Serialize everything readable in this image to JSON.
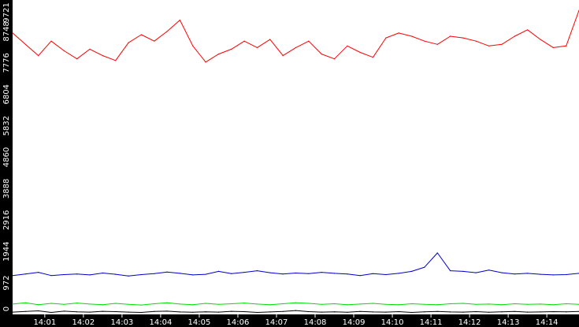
{
  "chart_data": {
    "type": "line",
    "title": "",
    "xlabel": "",
    "ylabel": "",
    "ylim": [
      0,
      9721
    ],
    "xlim": [
      "14:00:10",
      "14:14:50"
    ],
    "grid": false,
    "legend": "none",
    "y_ticks": [
      0,
      972,
      1944,
      2916,
      3888,
      4860,
      5832,
      6804,
      7776,
      8748,
      9721
    ],
    "x_ticks": [
      "14:01",
      "14:02",
      "14:03",
      "14:04",
      "14:05",
      "14:06",
      "14:07",
      "14:08",
      "14:09",
      "14:10",
      "14:11",
      "14:12",
      "14:13",
      "14:14"
    ],
    "x_tick_times": [
      "14:01:00",
      "14:02:00",
      "14:03:00",
      "14:04:00",
      "14:05:00",
      "14:06:00",
      "14:07:00",
      "14:08:00",
      "14:09:00",
      "14:10:00",
      "14:11:00",
      "14:12:00",
      "14:13:00",
      "14:14:00"
    ],
    "x": [
      "14:00:10",
      "14:00:30",
      "14:00:50",
      "14:01:10",
      "14:01:30",
      "14:01:50",
      "14:02:10",
      "14:02:30",
      "14:02:50",
      "14:03:10",
      "14:03:30",
      "14:03:50",
      "14:04:10",
      "14:04:30",
      "14:04:50",
      "14:05:10",
      "14:05:30",
      "14:05:50",
      "14:06:10",
      "14:06:30",
      "14:06:50",
      "14:07:10",
      "14:07:30",
      "14:07:50",
      "14:08:10",
      "14:08:30",
      "14:08:50",
      "14:09:10",
      "14:09:30",
      "14:09:50",
      "14:10:10",
      "14:10:30",
      "14:10:50",
      "14:11:10",
      "14:11:30",
      "14:11:50",
      "14:12:10",
      "14:12:30",
      "14:12:50",
      "14:13:10",
      "14:13:30",
      "14:13:50",
      "14:14:10",
      "14:14:30",
      "14:14:50"
    ],
    "series": [
      {
        "color": "#ff0000",
        "values": [
          8700,
          8350,
          8000,
          8450,
          8150,
          7900,
          8200,
          8000,
          7850,
          8400,
          8650,
          8450,
          8750,
          9100,
          8300,
          7800,
          8050,
          8200,
          8450,
          8250,
          8500,
          8000,
          8250,
          8450,
          8050,
          7900,
          8300,
          8100,
          7950,
          8550,
          8700,
          8600,
          8450,
          8350,
          8600,
          8550,
          8450,
          8300,
          8350,
          8600,
          8800,
          8500,
          8250,
          8300,
          9400
        ]
      },
      {
        "color": "#0000c8",
        "values": [
          1200,
          1250,
          1300,
          1200,
          1230,
          1250,
          1220,
          1280,
          1240,
          1190,
          1230,
          1260,
          1310,
          1270,
          1220,
          1240,
          1330,
          1260,
          1300,
          1350,
          1290,
          1250,
          1280,
          1260,
          1300,
          1270,
          1250,
          1200,
          1260,
          1230,
          1270,
          1330,
          1460,
          1900,
          1350,
          1330,
          1290,
          1370,
          1290,
          1250,
          1270,
          1240,
          1220,
          1230,
          1270
        ]
      },
      {
        "color": "#00dd00",
        "values": [
          320,
          360,
          300,
          340,
          310,
          350,
          320,
          300,
          340,
          310,
          290,
          330,
          360,
          320,
          300,
          340,
          310,
          330,
          350,
          320,
          300,
          330,
          360,
          340,
          310,
          330,
          300,
          320,
          340,
          310,
          300,
          330,
          310,
          300,
          330,
          340,
          310,
          320,
          300,
          330,
          310,
          320,
          300,
          330,
          310
        ]
      },
      {
        "color": "#000000",
        "values": [
          70,
          90,
          110,
          60,
          100,
          80,
          70,
          95,
          85,
          70,
          60,
          90,
          100,
          75,
          65,
          80,
          70,
          95,
          85,
          60,
          75,
          90,
          120,
          85,
          70,
          80,
          65,
          90,
          75,
          70,
          85,
          60,
          80,
          90,
          75,
          70,
          85,
          65,
          80,
          90,
          70,
          75,
          85,
          80,
          90
        ]
      }
    ]
  }
}
